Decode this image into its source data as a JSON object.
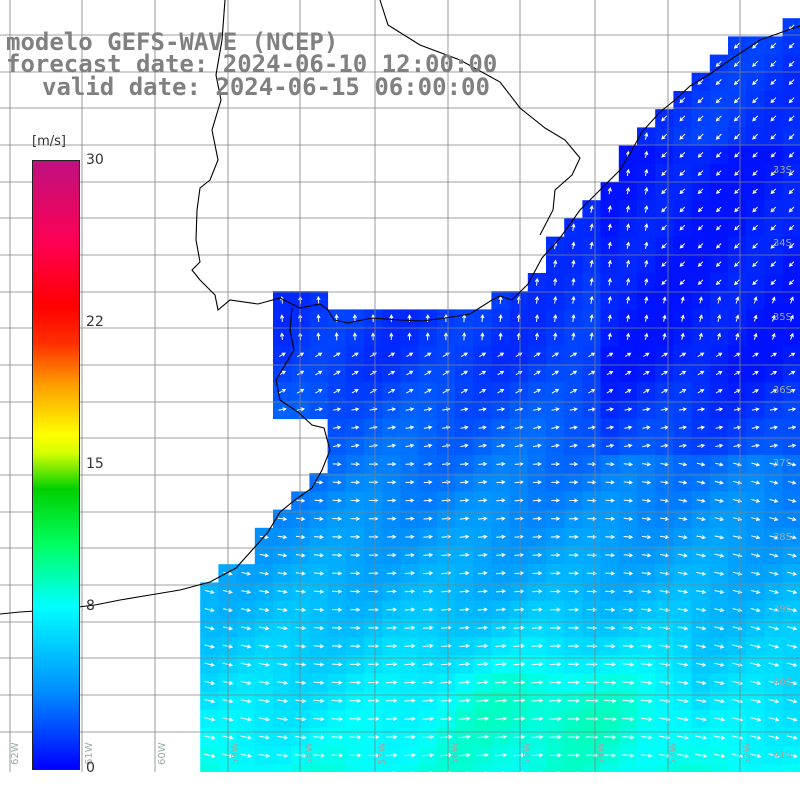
{
  "title": {
    "model": "modelo GEFS-WAVE (NCEP)",
    "forecast_date": "forecast date: 2024-06-10 12:00:00",
    "valid_date": "valid date: 2024-06-15 06:00:00"
  },
  "colorbar": {
    "unit": "[m/s]",
    "ticks": [
      {
        "label": "30",
        "value": 30
      },
      {
        "label": "22",
        "value": 22
      },
      {
        "label": "15",
        "value": 15
      },
      {
        "label": "8",
        "value": 8
      },
      {
        "label": "0",
        "value": 0
      }
    ],
    "min": 0,
    "max": 30,
    "colors": [
      "#0000ff",
      "#00ffff",
      "#00ff00",
      "#ffff00",
      "#ff0000",
      "#c01080"
    ]
  },
  "map": {
    "land_color": "#ffffff",
    "coast_color": "#000000",
    "grid_color": "#808080",
    "lat_labels": [
      "33S",
      "34S",
      "35S",
      "36S",
      "37S",
      "38S",
      "39S",
      "40S",
      "41S"
    ],
    "lon_labels": [
      "62W",
      "61W",
      "60W",
      "59W",
      "58W",
      "57W",
      "56W",
      "55W",
      "54W",
      "53W",
      "52W"
    ]
  }
}
